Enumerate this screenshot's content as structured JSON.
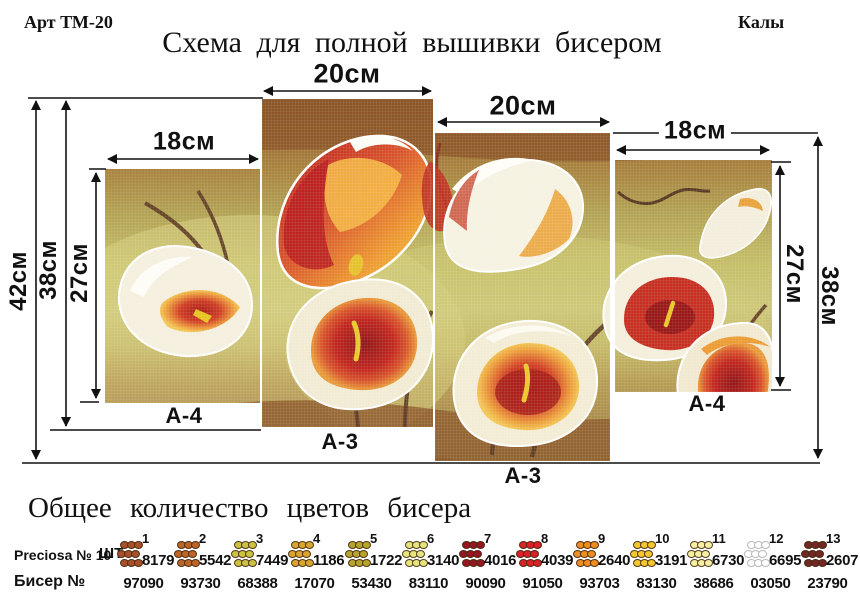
{
  "header": {
    "art_number": "Арт ТМ-20",
    "design_name": "Калы",
    "title": "Схема для полной вышивки бисером"
  },
  "diagram": {
    "panels": [
      {
        "label": "А-4",
        "width": "18см"
      },
      {
        "label": "А-3",
        "width": "20см"
      },
      {
        "label": "А-3",
        "width": "20см"
      },
      {
        "label": "А-4",
        "width": "18см"
      }
    ],
    "left_dims": [
      "42см",
      "38см",
      "27см"
    ],
    "right_dims": [
      "27см",
      "38см"
    ]
  },
  "legend": {
    "title": "Общее количество цветов бисера",
    "brand_label": "Preciosa № 10",
    "unit_label": "ШТ",
    "bead_label": "Бисер №",
    "colors": [
      {
        "num": "1",
        "count": "8179",
        "code": "97090",
        "hex": "#a8502a"
      },
      {
        "num": "2",
        "count": "5542",
        "code": "93730",
        "hex": "#bd6527"
      },
      {
        "num": "3",
        "count": "7449",
        "code": "68388",
        "hex": "#cbc244"
      },
      {
        "num": "4",
        "count": "1186",
        "code": "17070",
        "hex": "#d8a52e"
      },
      {
        "num": "5",
        "count": "1722",
        "code": "53430",
        "hex": "#b5a430"
      },
      {
        "num": "6",
        "count": "3140",
        "code": "83110",
        "hex": "#e5e57e"
      },
      {
        "num": "7",
        "count": "4016",
        "code": "90090",
        "hex": "#951722"
      },
      {
        "num": "8",
        "count": "4039",
        "code": "91050",
        "hex": "#da2127"
      },
      {
        "num": "9",
        "count": "2640",
        "code": "93703",
        "hex": "#ee8d22"
      },
      {
        "num": "10",
        "count": "3191",
        "code": "83130",
        "hex": "#f3c72f"
      },
      {
        "num": "11",
        "count": "6730",
        "code": "38686",
        "hex": "#f5f0a2"
      },
      {
        "num": "12",
        "count": "6695",
        "code": "03050",
        "hex": "#ffffff"
      },
      {
        "num": "13",
        "count": "2607",
        "code": "23790",
        "hex": "#722823"
      }
    ]
  }
}
